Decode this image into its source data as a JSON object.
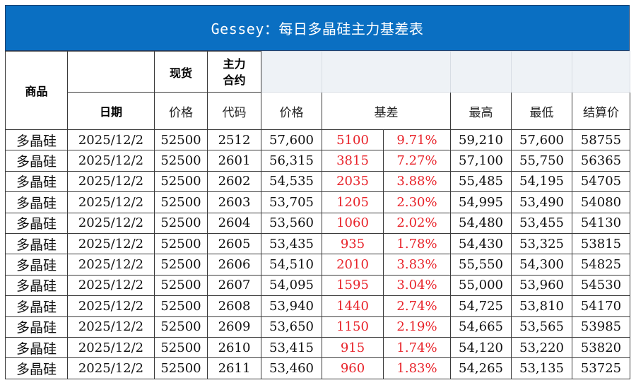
{
  "title": "Gessey：每日多晶硅主力基差表",
  "headers": {
    "product": "商品",
    "spot": "现货",
    "main_contract": "主力合约",
    "date": "日期",
    "spot_price": "价格",
    "code": "代码",
    "futures_price": "价格",
    "basis": "基差",
    "high": "最高",
    "low": "最低",
    "settlement": "结算价"
  },
  "rows": [
    {
      "product": "多晶硅",
      "date": "2025/12/2",
      "spot": "52500",
      "code": "2512",
      "price": "57,600",
      "basis": "5100",
      "basis_pct": "9.71%",
      "high": "59,210",
      "low": "57,600",
      "settle": "58755"
    },
    {
      "product": "多晶硅",
      "date": "2025/12/2",
      "spot": "52500",
      "code": "2601",
      "price": "56,315",
      "basis": "3815",
      "basis_pct": "7.27%",
      "high": "57,100",
      "low": "55,750",
      "settle": "56365"
    },
    {
      "product": "多晶硅",
      "date": "2025/12/2",
      "spot": "52500",
      "code": "2602",
      "price": "54,535",
      "basis": "2035",
      "basis_pct": "3.88%",
      "high": "55,485",
      "low": "54,195",
      "settle": "54705"
    },
    {
      "product": "多晶硅",
      "date": "2025/12/2",
      "spot": "52500",
      "code": "2603",
      "price": "53,705",
      "basis": "1205",
      "basis_pct": "2.30%",
      "high": "54,995",
      "low": "53,490",
      "settle": "54080"
    },
    {
      "product": "多晶硅",
      "date": "2025/12/2",
      "spot": "52500",
      "code": "2604",
      "price": "53,560",
      "basis": "1060",
      "basis_pct": "2.02%",
      "high": "54,480",
      "low": "53,455",
      "settle": "54130"
    },
    {
      "product": "多晶硅",
      "date": "2025/12/2",
      "spot": "52500",
      "code": "2605",
      "price": "53,435",
      "basis": "935",
      "basis_pct": "1.78%",
      "high": "54,430",
      "low": "53,325",
      "settle": "53815"
    },
    {
      "product": "多晶硅",
      "date": "2025/12/2",
      "spot": "52500",
      "code": "2606",
      "price": "54,510",
      "basis": "2010",
      "basis_pct": "3.83%",
      "high": "55,550",
      "low": "54,300",
      "settle": "54825"
    },
    {
      "product": "多晶硅",
      "date": "2025/12/2",
      "spot": "52500",
      "code": "2607",
      "price": "54,095",
      "basis": "1595",
      "basis_pct": "3.04%",
      "high": "55,000",
      "low": "53,960",
      "settle": "54530"
    },
    {
      "product": "多晶硅",
      "date": "2025/12/2",
      "spot": "52500",
      "code": "2608",
      "price": "53,940",
      "basis": "1440",
      "basis_pct": "2.74%",
      "high": "54,725",
      "low": "53,810",
      "settle": "54170"
    },
    {
      "product": "多晶硅",
      "date": "2025/12/2",
      "spot": "52500",
      "code": "2609",
      "price": "53,650",
      "basis": "1150",
      "basis_pct": "2.19%",
      "high": "54,665",
      "low": "53,565",
      "settle": "53985"
    },
    {
      "product": "多晶硅",
      "date": "2025/12/2",
      "spot": "52500",
      "code": "2610",
      "price": "53,415",
      "basis": "915",
      "basis_pct": "1.74%",
      "high": "54,120",
      "low": "53,220",
      "settle": "53820"
    },
    {
      "product": "多晶硅",
      "date": "2025/12/2",
      "spot": "52500",
      "code": "2611",
      "price": "53,460",
      "basis": "960",
      "basis_pct": "1.83%",
      "high": "54,265",
      "low": "53,135",
      "settle": "53725"
    }
  ],
  "colors": {
    "title_bg": "#0A6FC2",
    "basis_text": "#e8232a",
    "product_text": "#1b3a9a",
    "date_text": "#2b5fb4"
  }
}
